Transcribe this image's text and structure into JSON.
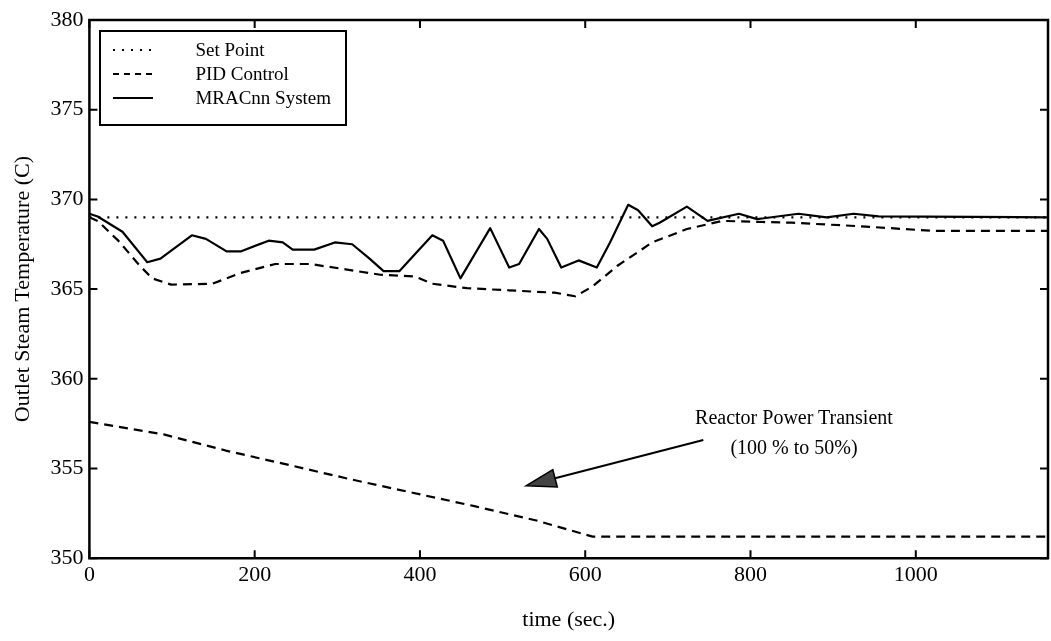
{
  "chart_data": {
    "type": "line",
    "xlabel": "time (sec.)",
    "ylabel": "Outlet Steam Temperature (C)",
    "xlim": [
      0,
      1160
    ],
    "xticks": [
      0,
      200,
      400,
      600,
      800,
      1000
    ],
    "ylim": [
      350,
      380
    ],
    "yticks": [
      350,
      355,
      360,
      365,
      370,
      375,
      380
    ],
    "grid": false,
    "legend": "top left",
    "marker": "none",
    "series": [
      {
        "name": "Set Point",
        "color": "#000000",
        "line_style": "dotted",
        "x": [
          0,
          1160
        ],
        "values": [
          369,
          369
        ]
      },
      {
        "name": "PID Control",
        "color": "#000000",
        "line_style": "dashed",
        "x": [
          0,
          10,
          35,
          61,
          76,
          99,
          149,
          183,
          225,
          267,
          310,
          352,
          394,
          415,
          457,
          563,
          588,
          609,
          639,
          681,
          723,
          766,
          850,
          934,
          1019,
          1160
        ],
        "values": [
          369,
          368.8,
          367.7,
          366.3,
          365.6,
          365.25,
          365.3,
          365.9,
          366.4,
          366.4,
          366.1,
          365.8,
          365.7,
          365.3,
          365.05,
          364.8,
          364.6,
          365.15,
          366.3,
          367.6,
          368.35,
          368.8,
          368.7,
          368.5,
          368.25,
          368.25
        ]
      },
      {
        "name": "MRACnn System",
        "color": "#000000",
        "line_style": "solid",
        "x": [
          0,
          10,
          40,
          70,
          86,
          124,
          141,
          166,
          183,
          217,
          234,
          246,
          272,
          297,
          318,
          339,
          356,
          375,
          415,
          428,
          449,
          485,
          508,
          520,
          544,
          554,
          571,
          592,
          614,
          630,
          652,
          664,
          681,
          690,
          723,
          748,
          786,
          808,
          858,
          892,
          925,
          955,
          1160
        ],
        "values": [
          369.2,
          369.05,
          368.2,
          366.5,
          366.7,
          368,
          367.8,
          367.1,
          367.1,
          367.7,
          367.6,
          367.2,
          367.2,
          367.6,
          367.5,
          366.7,
          366,
          366,
          368,
          367.7,
          365.6,
          368.4,
          366.2,
          366.4,
          368.35,
          367.8,
          366.2,
          366.6,
          366.2,
          367.6,
          369.7,
          369.4,
          368.5,
          368.7,
          369.6,
          368.8,
          369.2,
          368.9,
          369.2,
          369,
          369.2,
          369.05,
          369
        ]
      },
      {
        "color": "#000000",
        "line_style": "dashed",
        "x": [
          0,
          90,
          165,
          241,
          316,
          391,
          466,
          541,
          609,
          1160
        ],
        "values": [
          357.6,
          356.9,
          356,
          355.2,
          354.4,
          353.65,
          352.9,
          352.1,
          351.2,
          351.2
        ]
      }
    ],
    "annotations": [
      "Reactor Power Transient\n(100 % to 50%)"
    ]
  }
}
